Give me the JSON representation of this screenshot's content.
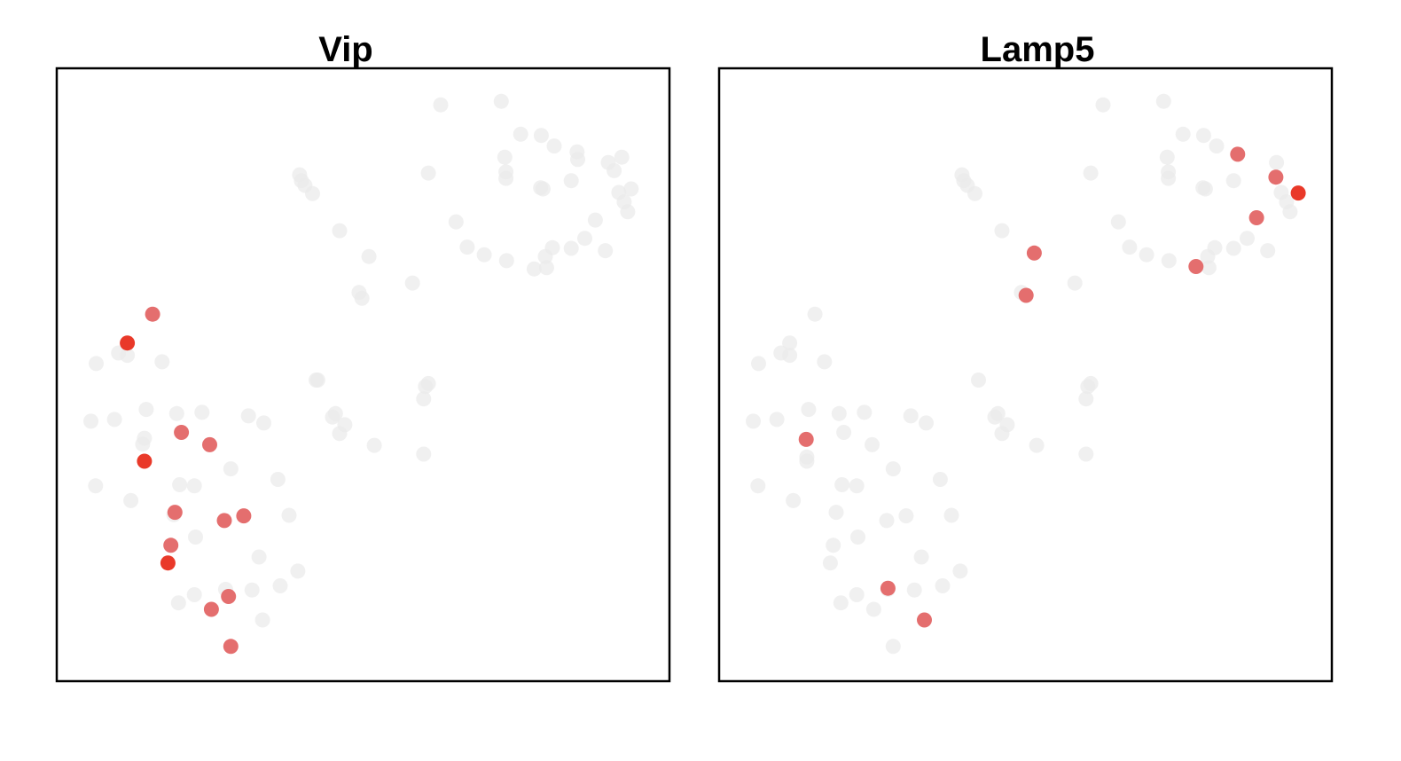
{
  "chart_data": [
    {
      "type": "scatter",
      "title": "Vip",
      "xlim": [
        0,
        100
      ],
      "ylim": [
        0,
        100
      ],
      "axes_visible": false,
      "colors": {
        "none": "#ebebeb",
        "mid": "#e36666",
        "high": "#e82e1e"
      },
      "points": [
        {
          "x": 63.2,
          "y": 95.9,
          "level": 0
        },
        {
          "x": 73.5,
          "y": 96.5,
          "level": 0
        },
        {
          "x": 76.8,
          "y": 90.9,
          "level": 0
        },
        {
          "x": 80.3,
          "y": 90.7,
          "level": 0
        },
        {
          "x": 82.5,
          "y": 88.9,
          "level": 0
        },
        {
          "x": 74.1,
          "y": 87.0,
          "level": 0
        },
        {
          "x": 86.4,
          "y": 87.9,
          "level": 0
        },
        {
          "x": 91.7,
          "y": 86.1,
          "level": 0
        },
        {
          "x": 94.0,
          "y": 87.0,
          "level": 0
        },
        {
          "x": 74.3,
          "y": 84.5,
          "level": 0
        },
        {
          "x": 74.3,
          "y": 83.4,
          "level": 0
        },
        {
          "x": 86.5,
          "y": 86.6,
          "level": 0
        },
        {
          "x": 92.7,
          "y": 84.7,
          "level": 0
        },
        {
          "x": 85.4,
          "y": 83.0,
          "level": 0
        },
        {
          "x": 80.2,
          "y": 81.8,
          "level": 0
        },
        {
          "x": 80.6,
          "y": 81.6,
          "level": 0
        },
        {
          "x": 93.5,
          "y": 81.0,
          "level": 0
        },
        {
          "x": 94.4,
          "y": 79.4,
          "level": 0
        },
        {
          "x": 95.6,
          "y": 81.6,
          "level": 0
        },
        {
          "x": 95.0,
          "y": 77.7,
          "level": 0
        },
        {
          "x": 89.5,
          "y": 76.3,
          "level": 0
        },
        {
          "x": 65.8,
          "y": 76.0,
          "level": 0
        },
        {
          "x": 61.1,
          "y": 84.3,
          "level": 0
        },
        {
          "x": 39.2,
          "y": 84.0,
          "level": 0
        },
        {
          "x": 39.5,
          "y": 83.0,
          "level": 0
        },
        {
          "x": 40.1,
          "y": 82.2,
          "level": 0
        },
        {
          "x": 41.4,
          "y": 80.8,
          "level": 0
        },
        {
          "x": 46.0,
          "y": 74.5,
          "level": 0
        },
        {
          "x": 67.7,
          "y": 71.7,
          "level": 0
        },
        {
          "x": 70.6,
          "y": 70.4,
          "level": 0
        },
        {
          "x": 74.4,
          "y": 69.4,
          "level": 0
        },
        {
          "x": 79.1,
          "y": 68.0,
          "level": 0
        },
        {
          "x": 81.0,
          "y": 70.1,
          "level": 0
        },
        {
          "x": 82.2,
          "y": 71.6,
          "level": 0
        },
        {
          "x": 85.4,
          "y": 71.5,
          "level": 0
        },
        {
          "x": 87.7,
          "y": 73.2,
          "level": 0
        },
        {
          "x": 91.2,
          "y": 71.1,
          "level": 0
        },
        {
          "x": 81.2,
          "y": 68.2,
          "level": 0
        },
        {
          "x": 51.0,
          "y": 70.1,
          "level": 0
        },
        {
          "x": 58.4,
          "y": 65.6,
          "level": 0
        },
        {
          "x": 49.3,
          "y": 64.0,
          "level": 0
        },
        {
          "x": 49.8,
          "y": 63.0,
          "level": 0
        },
        {
          "x": 14.2,
          "y": 60.3,
          "level": 1
        },
        {
          "x": 9.9,
          "y": 55.4,
          "level": 2
        },
        {
          "x": 4.6,
          "y": 51.9,
          "level": 0
        },
        {
          "x": 8.4,
          "y": 53.7,
          "level": 0
        },
        {
          "x": 15.8,
          "y": 52.2,
          "level": 0
        },
        {
          "x": 9.9,
          "y": 53.3,
          "level": 0
        },
        {
          "x": 42.0,
          "y": 49.1,
          "level": 0
        },
        {
          "x": 42.3,
          "y": 49.1,
          "level": 0
        },
        {
          "x": 61.1,
          "y": 48.5,
          "level": 0
        },
        {
          "x": 60.6,
          "y": 48.0,
          "level": 0
        },
        {
          "x": 60.3,
          "y": 45.9,
          "level": 0
        },
        {
          "x": 13.1,
          "y": 44.1,
          "level": 0
        },
        {
          "x": 18.3,
          "y": 43.4,
          "level": 0
        },
        {
          "x": 22.6,
          "y": 43.6,
          "level": 0
        },
        {
          "x": 3.7,
          "y": 42.1,
          "level": 0
        },
        {
          "x": 7.7,
          "y": 42.4,
          "level": 0
        },
        {
          "x": 30.5,
          "y": 43.0,
          "level": 0
        },
        {
          "x": 33.1,
          "y": 41.8,
          "level": 0
        },
        {
          "x": 45.3,
          "y": 43.4,
          "level": 0
        },
        {
          "x": 44.8,
          "y": 42.8,
          "level": 0
        },
        {
          "x": 46.9,
          "y": 41.5,
          "level": 0
        },
        {
          "x": 46.0,
          "y": 40.0,
          "level": 0
        },
        {
          "x": 12.5,
          "y": 38.2,
          "level": 0
        },
        {
          "x": 12.8,
          "y": 39.2,
          "level": 0
        },
        {
          "x": 51.9,
          "y": 38.0,
          "level": 0
        },
        {
          "x": 60.3,
          "y": 36.5,
          "level": 0
        },
        {
          "x": 27.5,
          "y": 34.0,
          "level": 0
        },
        {
          "x": 35.5,
          "y": 32.2,
          "level": 0
        },
        {
          "x": 4.5,
          "y": 31.1,
          "level": 0
        },
        {
          "x": 18.8,
          "y": 31.3,
          "level": 0
        },
        {
          "x": 21.3,
          "y": 31.1,
          "level": 0
        },
        {
          "x": 10.5,
          "y": 28.6,
          "level": 0
        },
        {
          "x": 17.8,
          "y": 26.2,
          "level": 0
        },
        {
          "x": 37.4,
          "y": 26.1,
          "level": 0
        },
        {
          "x": 21.5,
          "y": 22.4,
          "level": 0
        },
        {
          "x": 32.3,
          "y": 19.0,
          "level": 0
        },
        {
          "x": 38.9,
          "y": 16.6,
          "level": 0
        },
        {
          "x": 26.6,
          "y": 13.5,
          "level": 0
        },
        {
          "x": 31.1,
          "y": 13.4,
          "level": 0
        },
        {
          "x": 35.9,
          "y": 14.1,
          "level": 0
        },
        {
          "x": 21.3,
          "y": 12.6,
          "level": 0
        },
        {
          "x": 18.6,
          "y": 11.2,
          "level": 0
        },
        {
          "x": 32.9,
          "y": 8.3,
          "level": 0
        },
        {
          "x": 19.1,
          "y": 40.2,
          "level": 1
        },
        {
          "x": 23.9,
          "y": 38.1,
          "level": 1
        },
        {
          "x": 12.8,
          "y": 35.3,
          "level": 2
        },
        {
          "x": 18.0,
          "y": 26.6,
          "level": 1
        },
        {
          "x": 26.4,
          "y": 25.2,
          "level": 1
        },
        {
          "x": 29.7,
          "y": 26.0,
          "level": 1
        },
        {
          "x": 17.3,
          "y": 21.0,
          "level": 1
        },
        {
          "x": 16.8,
          "y": 18.0,
          "level": 2
        },
        {
          "x": 27.1,
          "y": 12.3,
          "level": 1
        },
        {
          "x": 24.2,
          "y": 10.1,
          "level": 1
        },
        {
          "x": 27.5,
          "y": 3.8,
          "level": 1
        }
      ]
    },
    {
      "type": "scatter",
      "title": "Lamp5",
      "xlim": [
        0,
        100
      ],
      "ylim": [
        0,
        100
      ],
      "axes_visible": false,
      "colors": {
        "none": "#ebebeb",
        "mid": "#e36666",
        "high": "#e82e1e"
      },
      "points": [
        {
          "x": 63.2,
          "y": 95.9,
          "level": 0
        },
        {
          "x": 73.5,
          "y": 96.5,
          "level": 0
        },
        {
          "x": 76.8,
          "y": 90.9,
          "level": 0
        },
        {
          "x": 80.3,
          "y": 90.7,
          "level": 0
        },
        {
          "x": 82.5,
          "y": 88.9,
          "level": 0
        },
        {
          "x": 74.1,
          "y": 87.0,
          "level": 0
        },
        {
          "x": 92.7,
          "y": 86.1,
          "level": 0
        },
        {
          "x": 74.3,
          "y": 84.5,
          "level": 0
        },
        {
          "x": 74.3,
          "y": 83.4,
          "level": 0
        },
        {
          "x": 85.4,
          "y": 83.0,
          "level": 0
        },
        {
          "x": 80.2,
          "y": 81.8,
          "level": 0
        },
        {
          "x": 80.6,
          "y": 81.6,
          "level": 0
        },
        {
          "x": 93.5,
          "y": 81.0,
          "level": 0
        },
        {
          "x": 94.4,
          "y": 79.4,
          "level": 0
        },
        {
          "x": 95.0,
          "y": 77.7,
          "level": 0
        },
        {
          "x": 61.1,
          "y": 84.3,
          "level": 0
        },
        {
          "x": 39.2,
          "y": 84.0,
          "level": 0
        },
        {
          "x": 39.5,
          "y": 83.0,
          "level": 0
        },
        {
          "x": 40.1,
          "y": 82.2,
          "level": 0
        },
        {
          "x": 41.4,
          "y": 80.8,
          "level": 0
        },
        {
          "x": 65.8,
          "y": 76.0,
          "level": 0
        },
        {
          "x": 46.0,
          "y": 74.5,
          "level": 0
        },
        {
          "x": 67.7,
          "y": 71.7,
          "level": 0
        },
        {
          "x": 70.6,
          "y": 70.4,
          "level": 0
        },
        {
          "x": 74.4,
          "y": 69.4,
          "level": 0
        },
        {
          "x": 81.2,
          "y": 68.2,
          "level": 0
        },
        {
          "x": 81.0,
          "y": 70.1,
          "level": 0
        },
        {
          "x": 82.2,
          "y": 71.6,
          "level": 0
        },
        {
          "x": 85.4,
          "y": 71.5,
          "level": 0
        },
        {
          "x": 87.7,
          "y": 73.2,
          "level": 0
        },
        {
          "x": 91.2,
          "y": 71.1,
          "level": 0
        },
        {
          "x": 58.4,
          "y": 65.6,
          "level": 0
        },
        {
          "x": 49.3,
          "y": 64.0,
          "level": 0
        },
        {
          "x": 86.1,
          "y": 87.5,
          "level": 1
        },
        {
          "x": 92.6,
          "y": 83.6,
          "level": 1
        },
        {
          "x": 96.4,
          "y": 80.9,
          "level": 2
        },
        {
          "x": 89.3,
          "y": 76.7,
          "level": 1
        },
        {
          "x": 79.0,
          "y": 68.4,
          "level": 1
        },
        {
          "x": 51.5,
          "y": 70.7,
          "level": 1
        },
        {
          "x": 50.1,
          "y": 63.5,
          "level": 1
        },
        {
          "x": 14.2,
          "y": 60.3,
          "level": 0
        },
        {
          "x": 9.9,
          "y": 55.4,
          "level": 0
        },
        {
          "x": 4.6,
          "y": 51.9,
          "level": 0
        },
        {
          "x": 8.4,
          "y": 53.7,
          "level": 0
        },
        {
          "x": 15.8,
          "y": 52.2,
          "level": 0
        },
        {
          "x": 9.9,
          "y": 53.3,
          "level": 0
        },
        {
          "x": 42.0,
          "y": 49.1,
          "level": 0
        },
        {
          "x": 61.1,
          "y": 48.5,
          "level": 0
        },
        {
          "x": 60.6,
          "y": 48.0,
          "level": 0
        },
        {
          "x": 60.3,
          "y": 45.9,
          "level": 0
        },
        {
          "x": 13.1,
          "y": 44.1,
          "level": 0
        },
        {
          "x": 18.3,
          "y": 43.4,
          "level": 0
        },
        {
          "x": 22.6,
          "y": 43.6,
          "level": 0
        },
        {
          "x": 3.7,
          "y": 42.1,
          "level": 0
        },
        {
          "x": 7.7,
          "y": 42.4,
          "level": 0
        },
        {
          "x": 30.5,
          "y": 43.0,
          "level": 0
        },
        {
          "x": 33.1,
          "y": 41.8,
          "level": 0
        },
        {
          "x": 45.3,
          "y": 43.4,
          "level": 0
        },
        {
          "x": 44.8,
          "y": 42.8,
          "level": 0
        },
        {
          "x": 46.9,
          "y": 41.5,
          "level": 0
        },
        {
          "x": 46.0,
          "y": 40.0,
          "level": 0
        },
        {
          "x": 19.1,
          "y": 40.2,
          "level": 0
        },
        {
          "x": 23.9,
          "y": 38.1,
          "level": 0
        },
        {
          "x": 12.8,
          "y": 36.0,
          "level": 0
        },
        {
          "x": 12.8,
          "y": 35.3,
          "level": 0
        },
        {
          "x": 51.9,
          "y": 38.0,
          "level": 0
        },
        {
          "x": 60.3,
          "y": 36.5,
          "level": 0
        },
        {
          "x": 27.5,
          "y": 34.0,
          "level": 0
        },
        {
          "x": 35.5,
          "y": 32.2,
          "level": 0
        },
        {
          "x": 4.5,
          "y": 31.1,
          "level": 0
        },
        {
          "x": 18.8,
          "y": 31.3,
          "level": 0
        },
        {
          "x": 21.3,
          "y": 31.1,
          "level": 0
        },
        {
          "x": 10.5,
          "y": 28.6,
          "level": 0
        },
        {
          "x": 17.8,
          "y": 26.6,
          "level": 0
        },
        {
          "x": 26.4,
          "y": 25.2,
          "level": 0
        },
        {
          "x": 29.7,
          "y": 26.0,
          "level": 0
        },
        {
          "x": 37.4,
          "y": 26.1,
          "level": 0
        },
        {
          "x": 21.5,
          "y": 22.4,
          "level": 0
        },
        {
          "x": 17.3,
          "y": 21.0,
          "level": 0
        },
        {
          "x": 16.8,
          "y": 18.0,
          "level": 0
        },
        {
          "x": 32.3,
          "y": 19.0,
          "level": 0
        },
        {
          "x": 38.9,
          "y": 16.6,
          "level": 0
        },
        {
          "x": 26.6,
          "y": 13.5,
          "level": 0
        },
        {
          "x": 31.1,
          "y": 13.4,
          "level": 0
        },
        {
          "x": 35.9,
          "y": 14.1,
          "level": 0
        },
        {
          "x": 21.3,
          "y": 12.6,
          "level": 0
        },
        {
          "x": 18.6,
          "y": 11.2,
          "level": 0
        },
        {
          "x": 24.2,
          "y": 10.1,
          "level": 0
        },
        {
          "x": 27.5,
          "y": 3.8,
          "level": 0
        },
        {
          "x": 12.7,
          "y": 39.0,
          "level": 1
        },
        {
          "x": 26.6,
          "y": 13.7,
          "level": 1
        },
        {
          "x": 32.8,
          "y": 8.3,
          "level": 1
        }
      ]
    }
  ]
}
